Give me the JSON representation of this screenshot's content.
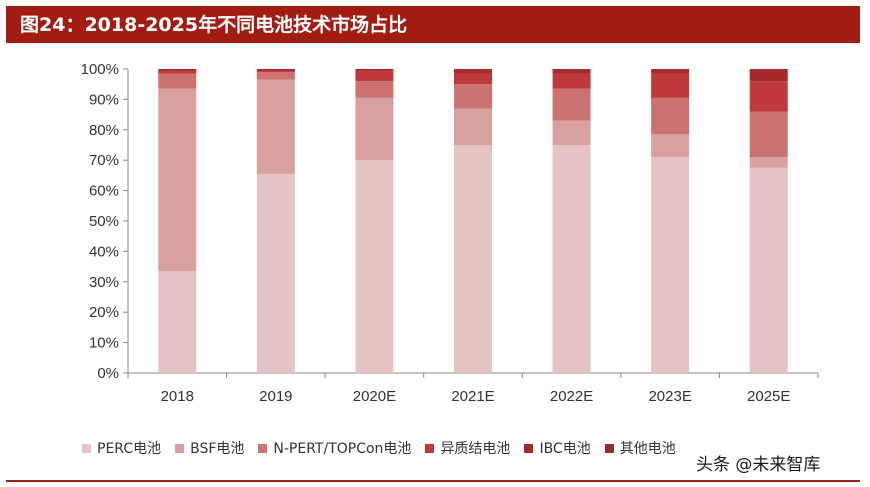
{
  "header": {
    "title": "图24：2018-2025年不同电池技术市场占比"
  },
  "watermark": "头条 @未来智库",
  "colors": {
    "header_bg": "#a31c12",
    "axis": "#888888"
  },
  "chart_data": {
    "type": "bar",
    "stacked": true,
    "categories": [
      "2018",
      "2019",
      "2020E",
      "2021E",
      "2022E",
      "2023E",
      "2025E"
    ],
    "ylim": [
      0,
      100
    ],
    "yticks": [
      0,
      10,
      20,
      30,
      40,
      50,
      60,
      70,
      80,
      90,
      100
    ],
    "ytick_labels": [
      "0%",
      "10%",
      "20%",
      "30%",
      "40%",
      "50%",
      "60%",
      "70%",
      "80%",
      "90%",
      "100%"
    ],
    "grid": false,
    "legend_position": "bottom",
    "series": [
      {
        "name": "PERC电池",
        "color": "#e6c3c3",
        "values": [
          33.5,
          65.5,
          70,
          75,
          75,
          71,
          67.5
        ]
      },
      {
        "name": "BSF电池",
        "color": "#d9a0a0",
        "values": [
          60,
          31,
          20.5,
          12,
          8,
          7.5,
          3.5
        ]
      },
      {
        "name": "N-PERT/TOPCon电池",
        "color": "#cc7272",
        "values": [
          5,
          2.5,
          5.5,
          8,
          10.5,
          12,
          15
        ]
      },
      {
        "name": "异质结电池",
        "color": "#c0393b",
        "values": [
          1,
          0.5,
          3.5,
          3.5,
          5,
          8,
          10
        ]
      },
      {
        "name": "IBC电池",
        "color": "#a62a2a",
        "values": [
          0.5,
          0.5,
          0.5,
          1.5,
          1.5,
          1.5,
          4
        ]
      },
      {
        "name": "其他电池",
        "color": "#8e3030",
        "values": [
          0,
          0,
          0,
          0,
          0,
          0,
          0
        ]
      }
    ]
  }
}
